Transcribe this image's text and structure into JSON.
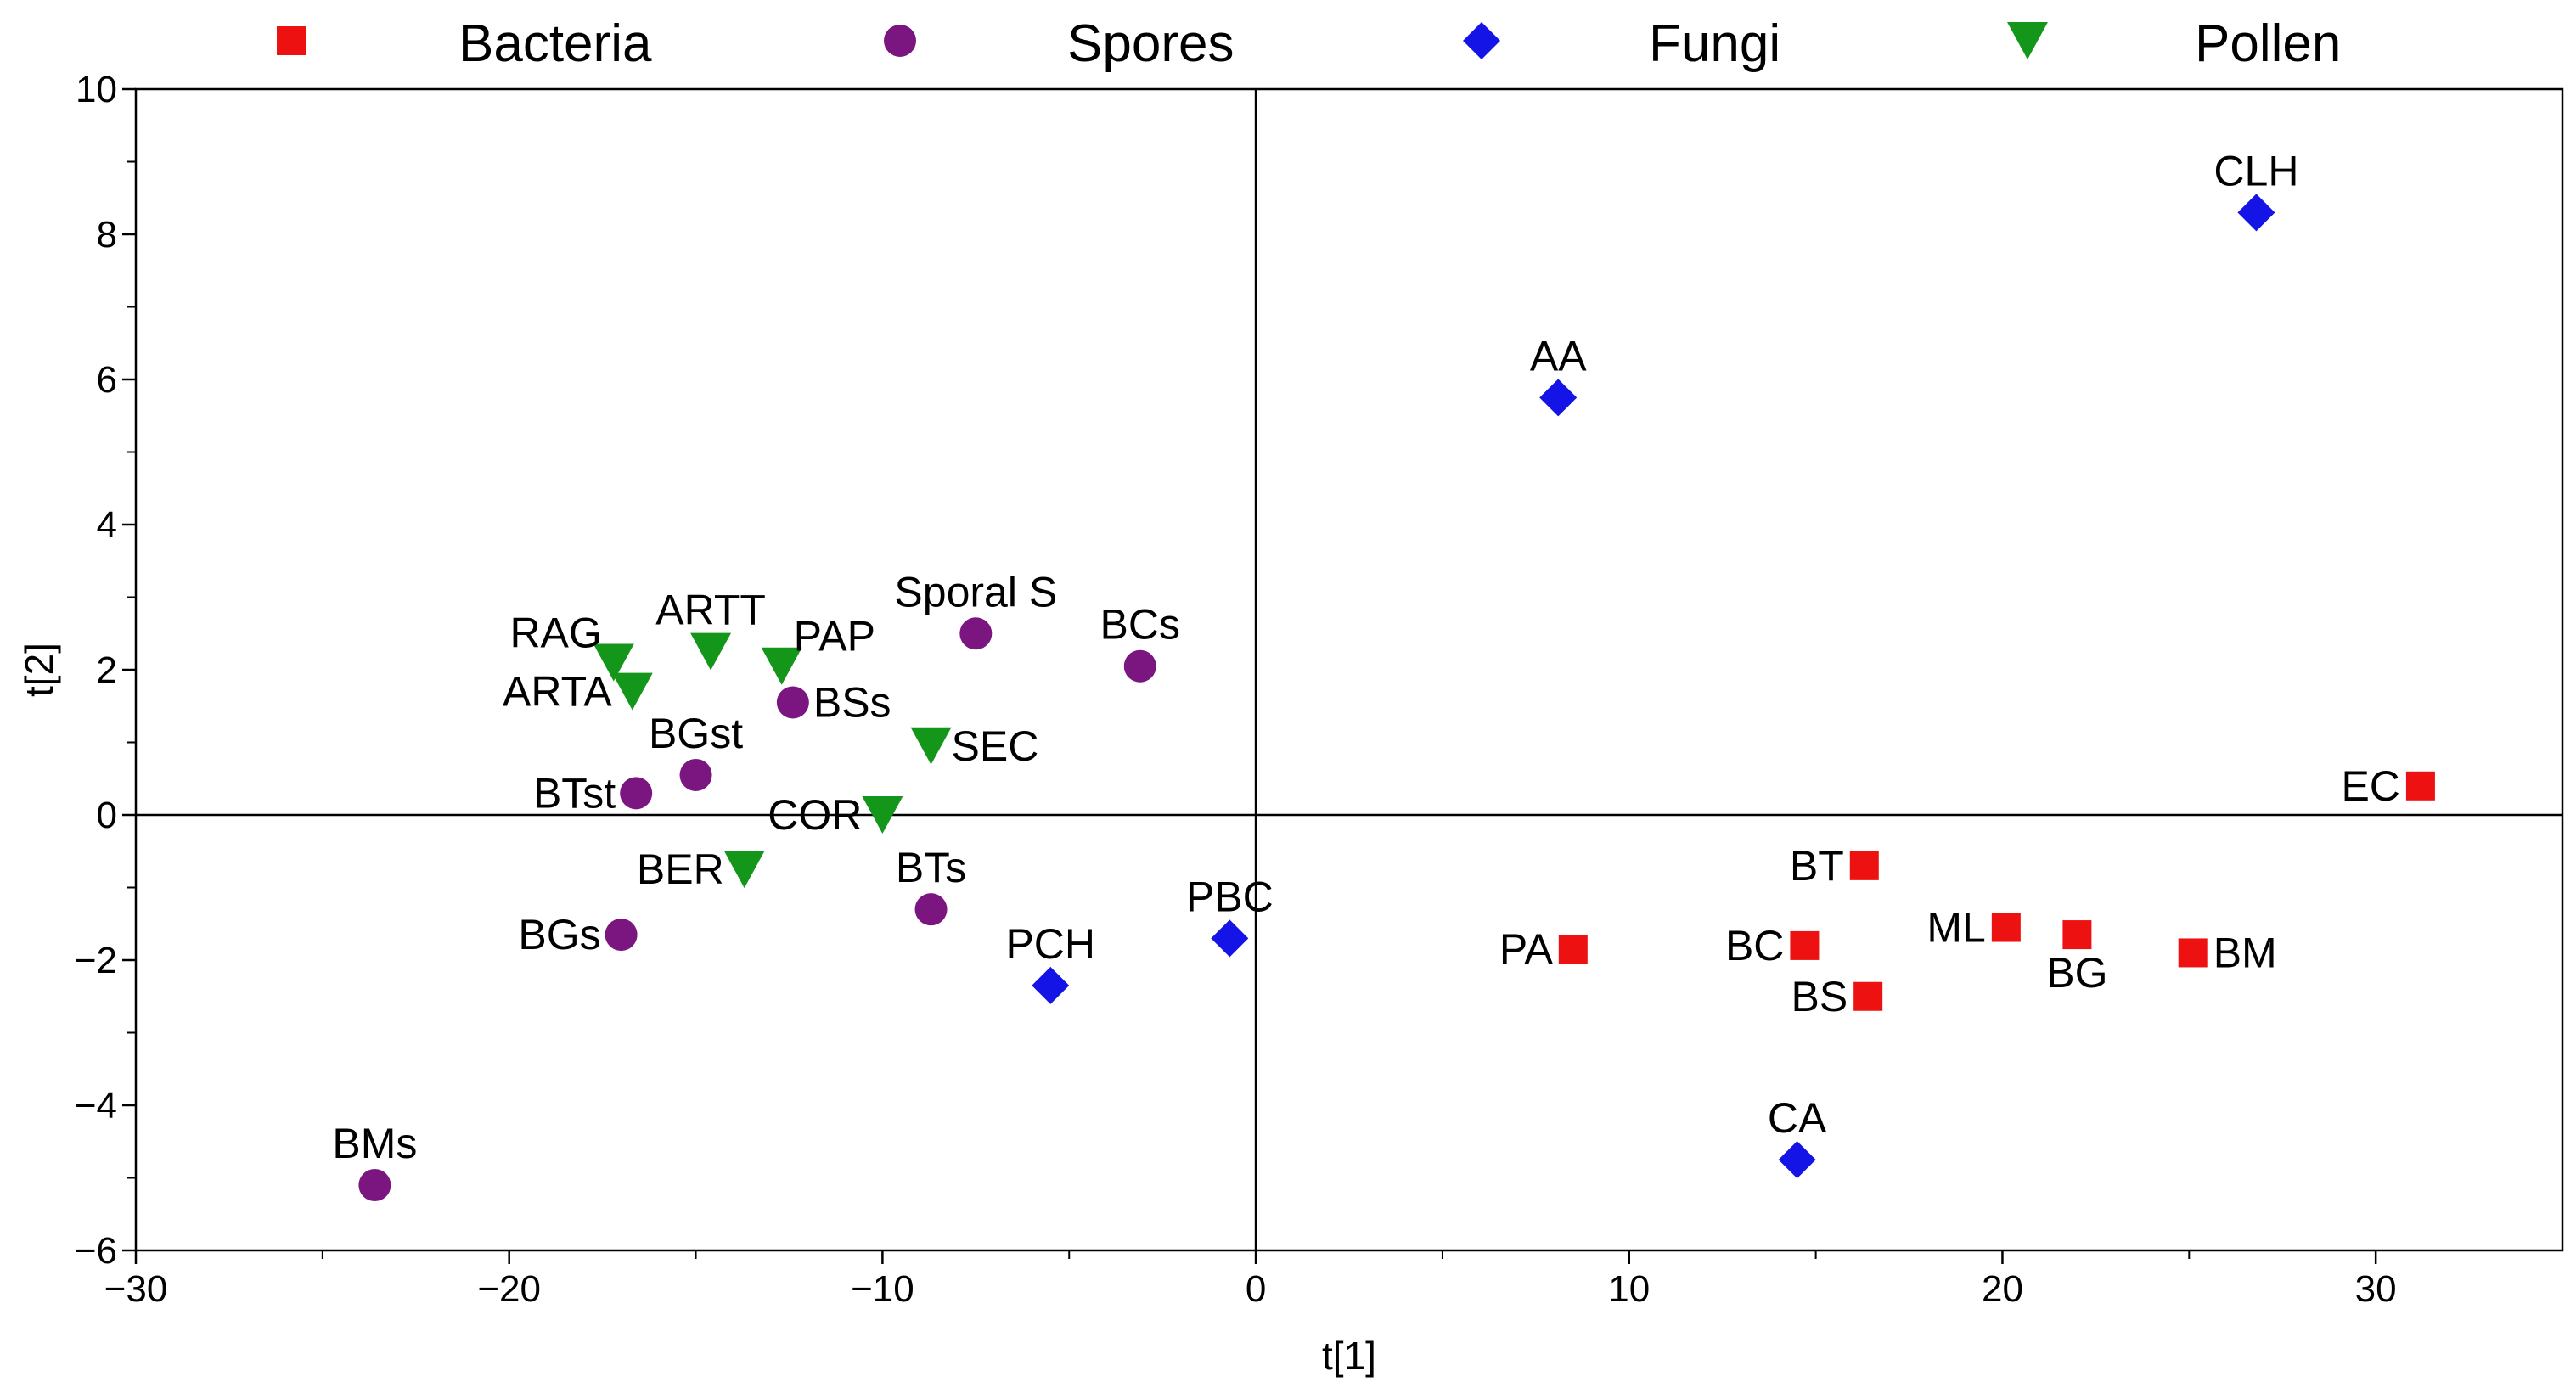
{
  "chart_data": {
    "type": "scatter",
    "title": "",
    "xlabel": "t[1]",
    "ylabel": "t[2]",
    "xlim": [
      -30,
      35
    ],
    "ylim": [
      -6,
      10
    ],
    "x_ticks": [
      -30,
      -20,
      -10,
      0,
      10,
      20,
      30
    ],
    "y_ticks": [
      -6,
      -4,
      -2,
      0,
      2,
      4,
      6,
      8,
      10
    ],
    "x_tick_labels": [
      "−30",
      "−20",
      "−10",
      "0",
      "10",
      "20",
      "30"
    ],
    "y_tick_labels": [
      "−6",
      "−4",
      "−2",
      "0",
      "2",
      "4",
      "6",
      "8",
      "10"
    ],
    "reference_lines": {
      "x": 0,
      "y": 0
    },
    "legend": {
      "placement": "top",
      "entries": [
        "Bacteria",
        "Spores",
        "Fungi",
        "Pollen"
      ]
    },
    "series": [
      {
        "name": "Bacteria",
        "marker": "square",
        "color": "#ee1111",
        "points": [
          {
            "label": "EC",
            "x": 31.2,
            "y": 0.4,
            "label_pos": "left"
          },
          {
            "label": "BT",
            "x": 16.3,
            "y": -0.7,
            "label_pos": "left"
          },
          {
            "label": "ML",
            "x": 20.1,
            "y": -1.55,
            "label_pos": "left"
          },
          {
            "label": "BG",
            "x": 22.0,
            "y": -1.65,
            "label_pos": "below"
          },
          {
            "label": "BM",
            "x": 25.1,
            "y": -1.9,
            "label_pos": "right"
          },
          {
            "label": "PA",
            "x": 8.5,
            "y": -1.85,
            "label_pos": "left"
          },
          {
            "label": "BC",
            "x": 14.7,
            "y": -1.8,
            "label_pos": "left"
          },
          {
            "label": "BS",
            "x": 16.4,
            "y": -2.5,
            "label_pos": "left"
          }
        ]
      },
      {
        "name": "Spores",
        "marker": "circle",
        "color": "#7b1580",
        "points": [
          {
            "label": "Sporal S",
            "x": -7.5,
            "y": 2.5,
            "label_pos": "above"
          },
          {
            "label": "BCs",
            "x": -3.1,
            "y": 2.05,
            "label_pos": "above"
          },
          {
            "label": "BSs",
            "x": -12.4,
            "y": 1.55,
            "label_pos": "right"
          },
          {
            "label": "BGst",
            "x": -15.0,
            "y": 0.55,
            "label_pos": "above"
          },
          {
            "label": "BTst",
            "x": -16.6,
            "y": 0.3,
            "label_pos": "left"
          },
          {
            "label": "BTs",
            "x": -8.7,
            "y": -1.3,
            "label_pos": "above"
          },
          {
            "label": "BGs",
            "x": -17.0,
            "y": -1.65,
            "label_pos": "left"
          },
          {
            "label": "BMs",
            "x": -23.6,
            "y": -5.1,
            "label_pos": "above"
          }
        ]
      },
      {
        "name": "Fungi",
        "marker": "diamond",
        "color": "#1414e6",
        "points": [
          {
            "label": "CLH",
            "x": 26.8,
            "y": 8.3,
            "label_pos": "above"
          },
          {
            "label": "AA",
            "x": 8.1,
            "y": 5.75,
            "label_pos": "above"
          },
          {
            "label": "PBC",
            "x": -0.7,
            "y": -1.7,
            "label_pos": "above"
          },
          {
            "label": "PCH",
            "x": -5.5,
            "y": -2.35,
            "label_pos": "above"
          },
          {
            "label": "CA",
            "x": 14.5,
            "y": -4.75,
            "label_pos": "above"
          }
        ]
      },
      {
        "name": "Pollen",
        "marker": "triangle-down",
        "color": "#14961a",
        "points": [
          {
            "label": "RAG",
            "x": -17.2,
            "y": 2.1,
            "label_pos": "left-above"
          },
          {
            "label": "ARTT",
            "x": -14.6,
            "y": 2.25,
            "label_pos": "above"
          },
          {
            "label": "PAP",
            "x": -12.7,
            "y": 2.05,
            "label_pos": "right-above"
          },
          {
            "label": "ARTA",
            "x": -16.7,
            "y": 1.7,
            "label_pos": "left"
          },
          {
            "label": "SEC",
            "x": -8.7,
            "y": 0.95,
            "label_pos": "right"
          },
          {
            "label": "COR",
            "x": -10.0,
            "y": 0.0,
            "label_pos": "left"
          },
          {
            "label": "BER",
            "x": -13.7,
            "y": -0.75,
            "label_pos": "left"
          }
        ]
      }
    ]
  }
}
